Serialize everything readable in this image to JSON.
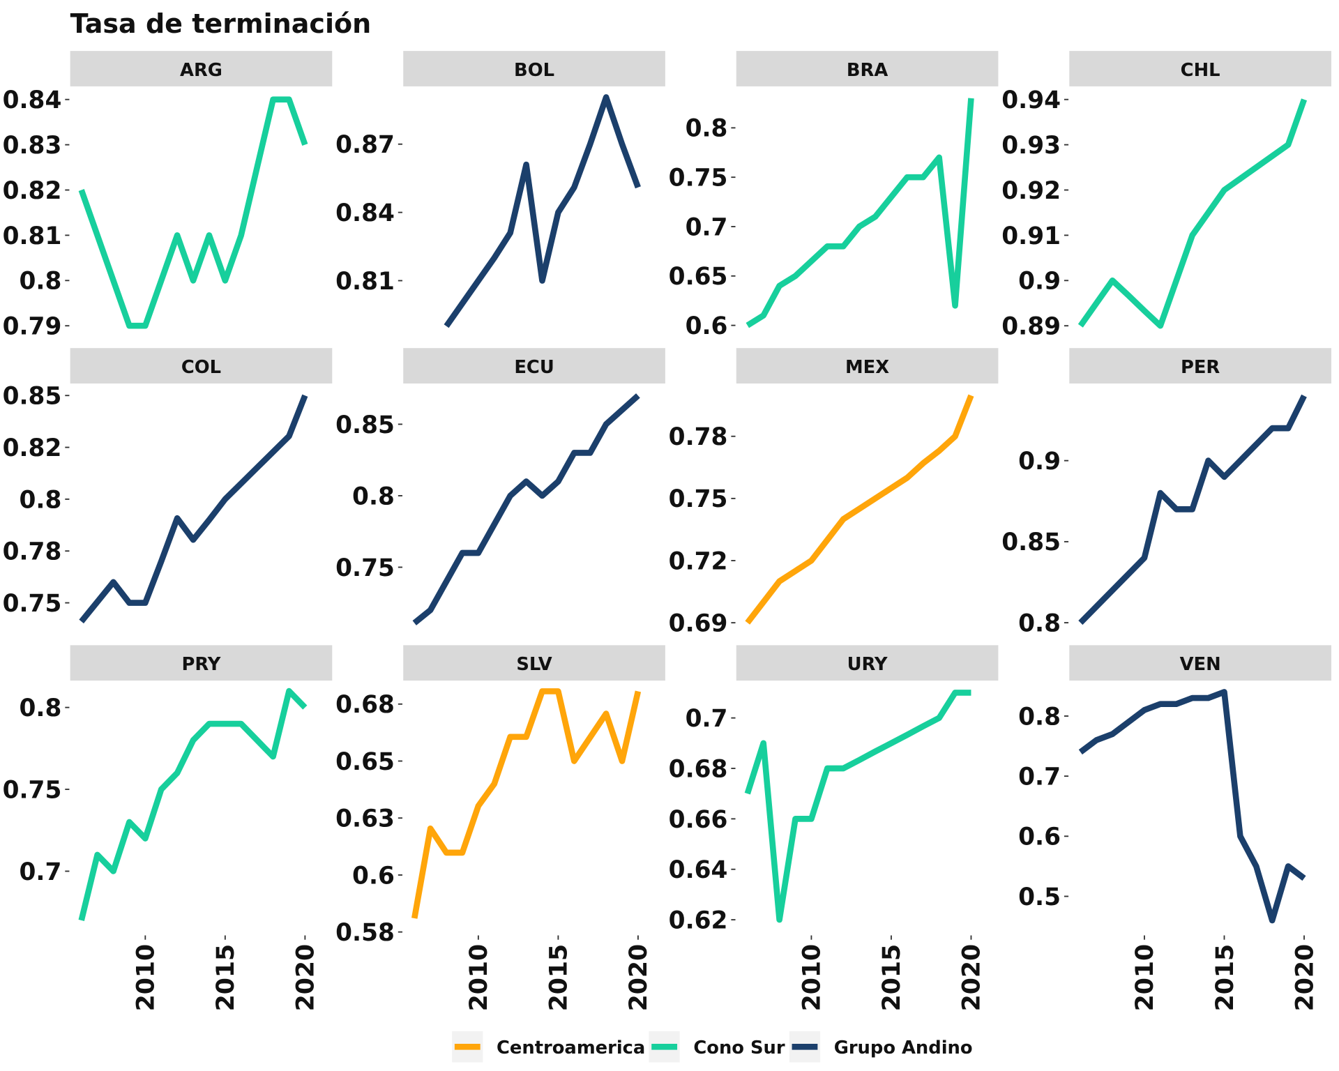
{
  "chart_data": {
    "type": "line",
    "title": "Tasa de terminación",
    "x": [
      2006,
      2007,
      2008,
      2009,
      2010,
      2011,
      2012,
      2013,
      2014,
      2015,
      2016,
      2017,
      2018,
      2019,
      2020
    ],
    "xlim": [
      2005.3,
      2021.7
    ],
    "xticks": [
      2010,
      2015,
      2020
    ],
    "grid": false,
    "legend_position": "bottom",
    "legend": [
      {
        "name": "Centroamerica",
        "color": "#ffa50a"
      },
      {
        "name": "Cono Sur",
        "color": "#17cf9c"
      },
      {
        "name": "Grupo Andino",
        "color": "#1b3f6b"
      }
    ],
    "panels": [
      {
        "title": "ARG",
        "color": "#17cf9c",
        "ylim": [
          0.7866,
          0.8429
        ],
        "yticks": [
          0.79,
          0.8,
          0.81,
          0.82,
          0.83,
          0.84
        ],
        "values": [
          0.82,
          0.81,
          0.8,
          0.79,
          0.79,
          0.8,
          0.81,
          0.8,
          0.81,
          0.8,
          0.81,
          0.825,
          0.84,
          0.84,
          0.83
        ]
      },
      {
        "title": "BOL",
        "color": "#1b3f6b",
        "ylim": [
          0.7834,
          0.8954
        ],
        "yticks": [
          0.81,
          0.84,
          0.87
        ],
        "values": [
          null,
          null,
          0.79,
          0.8,
          0.81,
          0.82,
          0.831,
          0.861,
          0.81,
          0.84,
          0.851,
          0.87,
          0.8906,
          0.87,
          0.851
        ]
      },
      {
        "title": "BRA",
        "color": "#17cf9c",
        "ylim": [
          0.584,
          0.842
        ],
        "yticks": [
          0.6,
          0.65,
          0.7,
          0.75,
          0.8
        ],
        "values": [
          0.6,
          0.61,
          0.64,
          0.65,
          0.665,
          0.68,
          0.68,
          0.7,
          0.71,
          0.73,
          0.75,
          0.75,
          0.77,
          0.62,
          0.83
        ]
      },
      {
        "title": "CHL",
        "color": "#17cf9c",
        "ylim": [
          0.8866,
          0.9429
        ],
        "yticks": [
          0.89,
          0.9,
          0.91,
          0.92,
          0.93,
          0.94
        ],
        "values": [
          0.89,
          0.895,
          0.9,
          0.8967,
          0.8933,
          0.89,
          0.9,
          0.91,
          0.915,
          0.92,
          0.9225,
          0.925,
          0.9275,
          0.93,
          0.94
        ]
      },
      {
        "title": "COL",
        "color": "#1b3f6b",
        "ylim": [
          0.7329,
          0.8558
        ],
        "yticks": [
          0.75,
          {
            "value": 0.775,
            "label": "0.78"
          },
          0.8,
          {
            "value": 0.825,
            "label": "0.82"
          },
          0.85
        ],
        "values": [
          0.741,
          0.7505,
          0.76,
          0.75,
          0.75,
          0.77,
          0.7908,
          0.7804,
          0.79,
          0.8,
          0.8076,
          0.8152,
          0.8228,
          0.8304,
          0.85
        ]
      },
      {
        "title": "ECU",
        "color": "#1b3f6b",
        "ylim": [
          0.7003,
          0.8785
        ],
        "yticks": [
          0.75,
          0.8,
          0.85
        ],
        "values": [
          0.711,
          0.72,
          0.74,
          0.76,
          0.76,
          0.78,
          0.8,
          0.81,
          0.8,
          0.81,
          0.83,
          0.83,
          0.85,
          0.86,
          0.87
        ]
      },
      {
        "title": "MEX",
        "color": "#ffa50a",
        "ylim": [
          0.6825,
          0.8055
        ],
        "yticks": [
          0.69,
          0.72,
          0.75,
          0.78
        ],
        "values": [
          0.69,
          0.7,
          0.71,
          0.715,
          0.72,
          0.73,
          0.74,
          0.745,
          0.75,
          0.755,
          0.76,
          0.767,
          0.773,
          0.78,
          0.7997
        ]
      },
      {
        "title": "PER",
        "color": "#1b3f6b",
        "ylim": [
          0.7904,
          0.9476
        ],
        "yticks": [
          0.8,
          0.85,
          0.9
        ],
        "values": [
          0.8,
          0.81,
          0.82,
          0.83,
          0.84,
          0.88,
          0.87,
          0.87,
          0.9,
          0.89,
          0.9,
          0.91,
          0.92,
          0.92,
          0.94
        ]
      },
      {
        "title": "PRY",
        "color": "#17cf9c",
        "ylim": [
          0.6608,
          0.8164
        ],
        "yticks": [
          0.7,
          0.75,
          0.8
        ],
        "values": [
          0.67,
          0.71,
          0.7,
          0.73,
          0.72,
          0.75,
          0.76,
          0.78,
          0.79,
          0.79,
          0.79,
          0.78,
          0.77,
          0.81,
          0.8
        ]
      },
      {
        "title": "SLV",
        "color": "#ffa50a",
        "ylim": [
          0.5735,
          0.6853
        ],
        "yticks": [
          {
            "value": 0.575,
            "label": "0.58"
          },
          0.6,
          {
            "value": 0.625,
            "label": "0.63"
          },
          0.65,
          {
            "value": 0.675,
            "label": "0.68"
          }
        ],
        "values": [
          0.581,
          0.6204,
          0.6098,
          0.6098,
          0.6303,
          0.64,
          0.6606,
          0.6606,
          0.6806,
          0.6806,
          0.65,
          0.6604,
          0.6708,
          0.65,
          0.6806
        ]
      },
      {
        "title": "URY",
        "color": "#17cf9c",
        "ylim": [
          0.6138,
          0.7148
        ],
        "yticks": [
          0.62,
          0.64,
          0.66,
          0.68,
          0.7
        ],
        "values": [
          0.67,
          0.69,
          0.62,
          0.66,
          0.66,
          0.68,
          0.68,
          0.6833,
          0.6867,
          0.69,
          0.6933,
          0.6967,
          0.7,
          0.71,
          0.71
        ]
      },
      {
        "title": "VEN",
        "color": "#1b3f6b",
        "ylim": [
          0.435,
          0.859
        ],
        "yticks": [
          0.5,
          0.6,
          0.7,
          0.8
        ],
        "values": [
          0.74,
          0.76,
          0.77,
          0.79,
          0.81,
          0.82,
          0.82,
          0.83,
          0.83,
          0.84,
          0.6,
          0.55,
          0.46,
          0.55,
          0.53
        ]
      }
    ]
  }
}
